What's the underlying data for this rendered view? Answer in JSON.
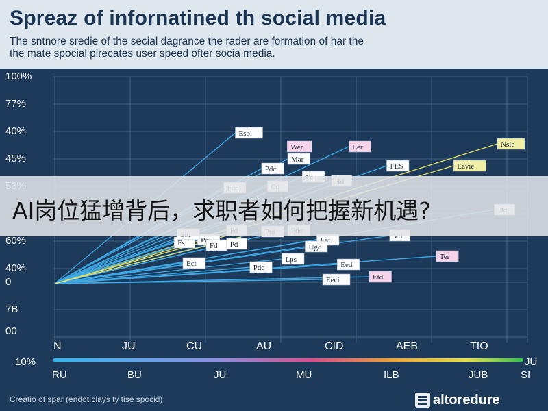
{
  "header": {
    "title": "Spreaz of infornatined th social media",
    "subtitle_line1": "The sntnore sredie of the secial dagrance the rader are formation of har the",
    "subtitle_line2": "the mate spocial plrecates user speed ofter socia media."
  },
  "banner": {
    "text": "AI岗位猛增背后，求职者如何把握新机遇?"
  },
  "caption": "Creatio of spar (endot clays ty tise spocid)",
  "logo": {
    "text": "altoredure"
  },
  "colors": {
    "background": "#1d3a5a",
    "grid": "#3f6182",
    "blue_line": "#3fa9e6",
    "yellow_line": "#e6e266",
    "label_box": "#ffffff",
    "label_box_pink": "#f7d3ea"
  },
  "chart_data": {
    "type": "line",
    "y_tick_labels": [
      "100%",
      "77%",
      "40%",
      "45%",
      "53%",
      "60%",
      "40%",
      "0",
      "7B",
      "00"
    ],
    "x_tick_labels": [
      "N",
      "JU",
      "CU",
      "AU",
      "CID",
      "AEB",
      "TIO"
    ],
    "x2_tick_labels": [
      "RU",
      "BU",
      "JU",
      "MU",
      "ILB",
      "JUB",
      "SI"
    ],
    "colorbar": {
      "left_label": "10%",
      "right_label": "JU"
    },
    "grid": true,
    "series": [
      {
        "color": "blue",
        "end": [
          3.1,
          7.45
        ],
        "label": "Esol"
      },
      {
        "color": "blue",
        "end": [
          5.05,
          6.95
        ],
        "label": "Ler",
        "tag": "Wer",
        "tag_pink": true
      },
      {
        "color": "blue",
        "end": [
          4.0,
          6.5
        ],
        "label": "Mar"
      },
      {
        "color": "blue",
        "end": [
          3.55,
          6.15
        ],
        "label": "Pdc"
      },
      {
        "color": "blue",
        "end": [
          5.7,
          6.25
        ],
        "label": "FES"
      },
      {
        "color": "blue",
        "end": [
          4.25,
          5.85
        ],
        "label": "Fer"
      },
      {
        "color": "blue",
        "end": [
          4.75,
          5.7
        ],
        "label": "Hd"
      },
      {
        "color": "blue",
        "end": [
          2.9,
          5.45
        ],
        "label": "Fdd"
      },
      {
        "color": "blue",
        "end": [
          3.65,
          5.5
        ],
        "label": "Cd"
      },
      {
        "color": "yellow",
        "end": [
          7.6,
          7.05
        ],
        "label": "Nsle",
        "yellow_label": true
      },
      {
        "color": "yellow",
        "end": [
          6.85,
          6.25
        ],
        "label": "Eavie",
        "yellow_label": true
      },
      {
        "color": "blue",
        "end": [
          7.55,
          4.65
        ],
        "label": "Dd"
      },
      {
        "color": "blue",
        "end": [
          5.75,
          3.7
        ],
        "label": "Vd"
      },
      {
        "color": "blue",
        "end": [
          4.5,
          3.55
        ],
        "label": "Lat"
      },
      {
        "color": "blue",
        "end": [
          4.0,
          3.9
        ],
        "label": "Pdo"
      },
      {
        "color": "blue",
        "end": [
          3.55,
          3.85
        ],
        "label": "Ptd"
      },
      {
        "color": "blue",
        "end": [
          2.95,
          3.9
        ],
        "label": "Pd"
      },
      {
        "color": "blue",
        "end": [
          2.45,
          3.55
        ],
        "label": "Pdl"
      },
      {
        "color": "blue",
        "end": [
          2.05,
          3.45
        ],
        "label": "Fs"
      },
      {
        "color": "blue",
        "end": [
          6.55,
          2.95
        ],
        "label": "Ter",
        "tag_pink": true
      },
      {
        "color": "blue",
        "end": [
          4.85,
          2.65
        ],
        "label": "Eed"
      },
      {
        "color": "blue",
        "end": [
          3.35,
          2.55
        ],
        "label": "Pdc"
      },
      {
        "color": "blue",
        "end": [
          5.4,
          2.2
        ],
        "label": "Etd",
        "tag_pink": true
      },
      {
        "color": "blue",
        "end": [
          4.6,
          2.1
        ],
        "label": "Eeci"
      },
      {
        "color": "blue",
        "end": [
          2.95,
          3.4
        ],
        "label": "Pd"
      },
      {
        "color": "blue",
        "end": [
          2.6,
          3.35
        ],
        "label": "Fd"
      },
      {
        "color": "blue",
        "end": [
          2.2,
          2.7
        ],
        "label": "Ect"
      },
      {
        "color": "blue",
        "end": [
          2.1,
          3.75
        ],
        "label": "Sto"
      },
      {
        "color": "blue",
        "end": [
          4.3,
          3.3
        ],
        "label": "Ugd"
      },
      {
        "color": "blue",
        "end": [
          3.9,
          2.85
        ],
        "label": "Lps"
      },
      {
        "color": "yellow",
        "end": [
          3.2,
          3.65
        ]
      },
      {
        "color": "yellow",
        "end": [
          2.95,
          3.7
        ]
      }
    ]
  }
}
